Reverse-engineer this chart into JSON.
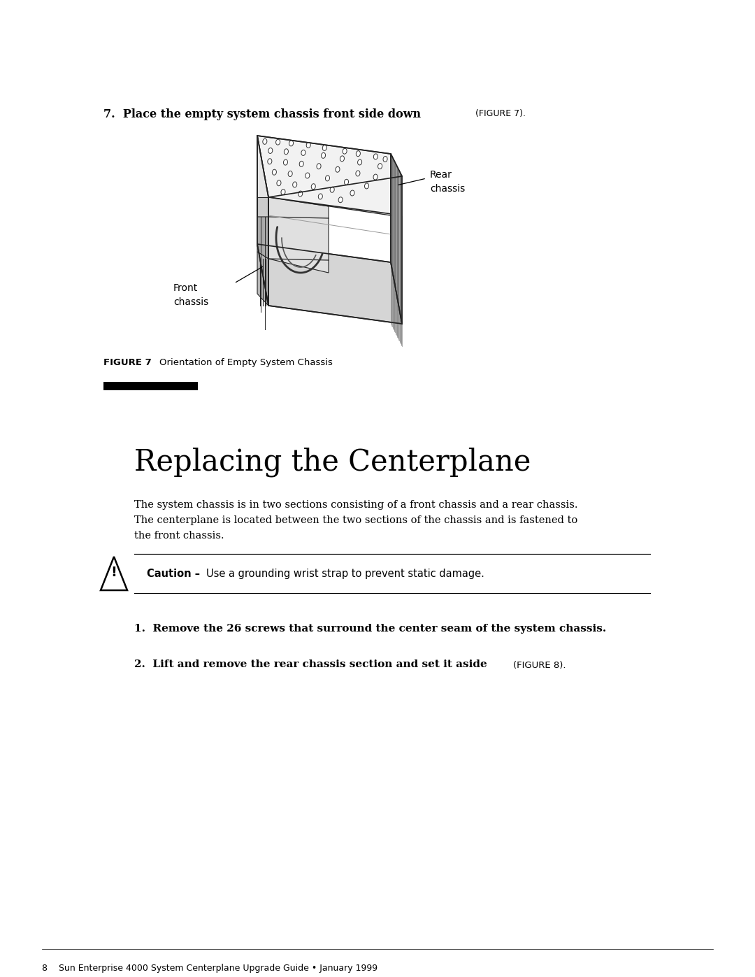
{
  "bg_color": "#ffffff",
  "step7_bold": "7.  Place the empty system chassis front side down ",
  "step7_small": "(FIGURE 7).",
  "figure_label": "FIGURE 7",
  "figure_caption": "Orientation of Empty System Chassis",
  "section_title": "Replacing the Centerplane",
  "body_line1": "The system chassis is in two sections consisting of a front chassis and a rear chassis.",
  "body_line2": "The centerplane is located between the two sections of the chassis and is fastened to",
  "body_line3": "the front chassis.",
  "caution_bold": "Caution – ",
  "caution_rest": "Use a grounding wrist strap to prevent static damage.",
  "step1": "1.  Remove the 26 screws that surround the center seam of the system chassis.",
  "step2_bold": "2.  Lift and remove the rear chassis section and set it aside ",
  "step2_small": "(FIGURE 8).",
  "footer": "8    Sun Enterprise 4000 System Centerplane Upgrade Guide • January 1999",
  "label_front": "Front\nchassis",
  "label_rear": "Rear\nchassis"
}
